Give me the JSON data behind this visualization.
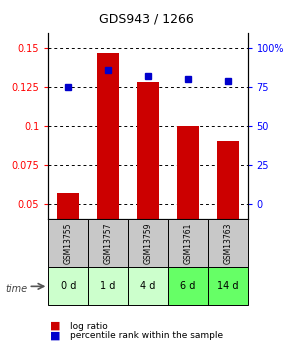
{
  "title": "GDS943 / 1266",
  "samples": [
    "GSM13755",
    "GSM13757",
    "GSM13759",
    "GSM13761",
    "GSM13763"
  ],
  "time_labels": [
    "0 d",
    "1 d",
    "4 d",
    "6 d",
    "14 d"
  ],
  "log_ratios": [
    0.057,
    0.147,
    0.128,
    0.1,
    0.09
  ],
  "percentile_ranks": [
    75,
    86,
    82,
    80,
    79
  ],
  "ylim_left": [
    0.04,
    0.16
  ],
  "yticks_left": [
    0.05,
    0.075,
    0.1,
    0.125,
    0.15
  ],
  "ytick_labels_left": [
    "0.05",
    "0.075",
    "0.1",
    "0.125",
    "0.15"
  ],
  "ylim_right": [
    -6.67,
    100
  ],
  "yticks_right": [
    0,
    25,
    50,
    75,
    100
  ],
  "ytick_labels_right": [
    "0",
    "25",
    "50",
    "75",
    "100%"
  ],
  "bar_color": "#cc0000",
  "dot_color": "#0000cc",
  "bar_width": 0.55,
  "sample_box_color": "#c8c8c8",
  "time_box_colors": [
    "#ccffcc",
    "#ccffcc",
    "#ccffcc",
    "#66ff66",
    "#66ff66"
  ],
  "time_label": "time"
}
